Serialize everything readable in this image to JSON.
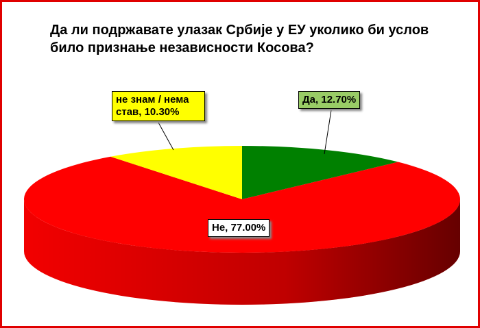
{
  "chart_data": {
    "type": "pie",
    "title": "Да ли подржавате улазак Србије у ЕУ уколико би услов било признање независности Косова?",
    "values": [
      12.7,
      77.0,
      10.3
    ],
    "value_labels": [
      "Да, 12.70%",
      "Не, 77.00%",
      "не знам / нема став, 10.30%"
    ],
    "colors": [
      "#008000",
      "#ff0000",
      "#ffff00"
    ]
  }
}
